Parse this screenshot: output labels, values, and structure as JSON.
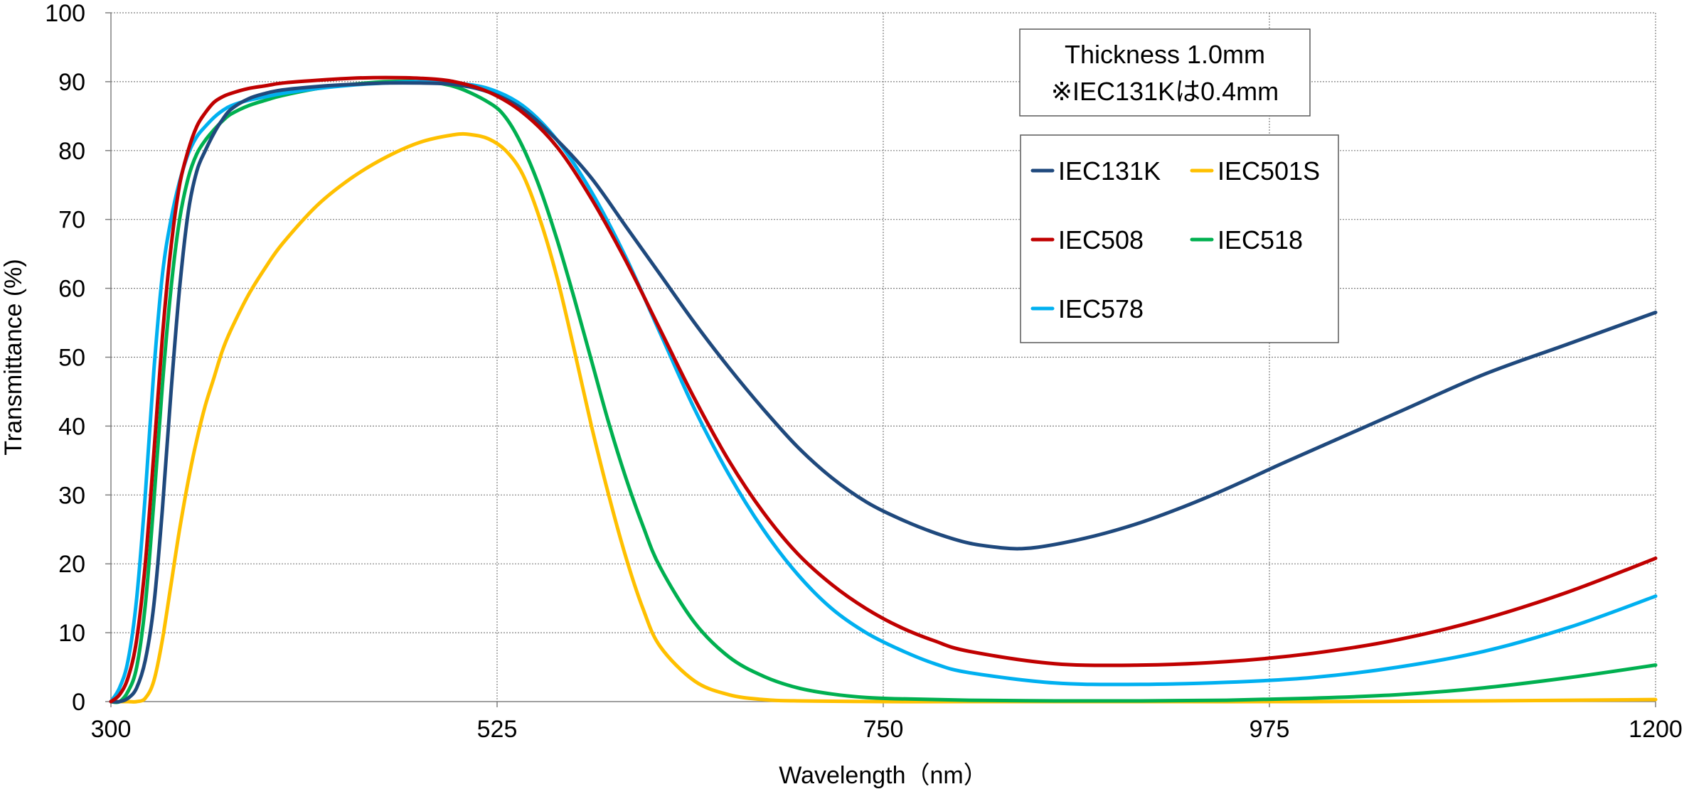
{
  "chart_data": {
    "type": "line",
    "title": "",
    "xlabel": "Wavelength（nm）",
    "ylabel": "Transmittance (%)",
    "xlim": [
      300,
      1200
    ],
    "ylim": [
      0,
      100
    ],
    "xticks": [
      300,
      525,
      750,
      975,
      1200
    ],
    "yticks": [
      0,
      10,
      20,
      30,
      40,
      50,
      60,
      70,
      80,
      90,
      100
    ],
    "grid": true,
    "legend_position": "top-right",
    "annotation": {
      "line1": "Thickness  1.0mm",
      "line2": "※IEC131Kは0.4mm"
    },
    "series": [
      {
        "name": "IEC131K",
        "color": "#1F497D",
        "x": [
          300,
          305,
          310,
          315,
          320,
          325,
          330,
          335,
          340,
          345,
          350,
          355,
          360,
          365,
          370,
          380,
          390,
          400,
          420,
          440,
          460,
          480,
          500,
          520,
          540,
          560,
          580,
          600,
          620,
          640,
          660,
          680,
          700,
          720,
          740,
          760,
          780,
          800,
          820,
          830,
          840,
          860,
          880,
          900,
          920,
          940,
          960,
          980,
          1000,
          1050,
          1100,
          1150,
          1200
        ],
        "y": [
          0,
          0,
          0.5,
          2,
          6,
          14,
          28,
          45,
          60,
          71,
          77,
          80,
          82.5,
          84.5,
          86,
          87.5,
          88.3,
          88.8,
          89.3,
          89.6,
          89.8,
          89.8,
          89.6,
          88.5,
          86,
          81.5,
          76,
          69,
          62,
          55,
          48.5,
          42.5,
          37,
          32.5,
          29,
          26.5,
          24.5,
          23,
          22.3,
          22.2,
          22.4,
          23.3,
          24.5,
          26,
          27.8,
          29.8,
          32,
          34.3,
          36.5,
          42,
          47.5,
          52,
          56.5
        ]
      },
      {
        "name": "IEC501S",
        "color": "#FFC000",
        "x": [
          300,
          310,
          315,
          320,
          325,
          330,
          335,
          340,
          345,
          350,
          355,
          360,
          365,
          370,
          380,
          390,
          400,
          420,
          440,
          460,
          480,
          500,
          510,
          520,
          530,
          540,
          550,
          560,
          570,
          580,
          590,
          600,
          610,
          620,
          640,
          660,
          680,
          700,
          750,
          800,
          900,
          1000,
          1100,
          1200
        ],
        "y": [
          0,
          0,
          0,
          0.5,
          3,
          9,
          17,
          25,
          32,
          38,
          43,
          47,
          51,
          54,
          59,
          63,
          66.5,
          72,
          76,
          79,
          81.2,
          82.3,
          82.3,
          81.7,
          80,
          76.5,
          70,
          61.5,
          51,
          40,
          30,
          21,
          13.5,
          8,
          3,
          1,
          0.3,
          0.1,
          0,
          0,
          0,
          0,
          0.1,
          0.3
        ]
      },
      {
        "name": "IEC508",
        "color": "#C00000",
        "x": [
          300,
          305,
          310,
          315,
          320,
          325,
          330,
          335,
          340,
          345,
          350,
          355,
          360,
          365,
          370,
          380,
          390,
          400,
          420,
          440,
          460,
          480,
          500,
          520,
          540,
          560,
          580,
          600,
          620,
          640,
          660,
          680,
          700,
          720,
          740,
          760,
          780,
          800,
          850,
          900,
          950,
          1000,
          1050,
          1100,
          1150,
          1200
        ],
        "y": [
          0,
          1,
          3.5,
          9,
          20,
          36,
          53,
          66,
          75,
          80,
          83.5,
          85.5,
          87,
          87.8,
          88.3,
          89,
          89.4,
          89.8,
          90.2,
          90.5,
          90.6,
          90.5,
          90,
          88.5,
          85.5,
          80.5,
          73,
          64,
          54,
          44,
          35,
          27.5,
          21.5,
          17,
          13.5,
          10.8,
          8.8,
          7.3,
          5.5,
          5.3,
          5.8,
          7,
          9,
          12,
          16,
          20.8
        ]
      },
      {
        "name": "IEC518",
        "color": "#00B050",
        "x": [
          300,
          305,
          310,
          315,
          320,
          325,
          330,
          335,
          340,
          345,
          350,
          355,
          360,
          365,
          370,
          380,
          390,
          400,
          420,
          440,
          460,
          480,
          500,
          520,
          530,
          540,
          550,
          560,
          570,
          580,
          590,
          600,
          610,
          620,
          640,
          660,
          680,
          700,
          720,
          740,
          760,
          800,
          850,
          900,
          950,
          1000,
          1050,
          1100,
          1150,
          1200
        ],
        "y": [
          0,
          0,
          1.5,
          5,
          14,
          29,
          46,
          60,
          70,
          76,
          79.5,
          81.5,
          83,
          84.3,
          85.3,
          86.5,
          87.3,
          88,
          89,
          89.6,
          90,
          90,
          89.3,
          87,
          84.8,
          80.5,
          74.5,
          67,
          58.5,
          49.5,
          40.5,
          32.5,
          25.5,
          19.5,
          11.5,
          6.5,
          3.7,
          2,
          1.1,
          0.6,
          0.4,
          0.2,
          0.1,
          0.1,
          0.2,
          0.5,
          1,
          2,
          3.5,
          5.3
        ]
      },
      {
        "name": "IEC578",
        "color": "#00B0F0",
        "x": [
          300,
          305,
          310,
          315,
          320,
          325,
          330,
          335,
          340,
          345,
          350,
          355,
          360,
          365,
          370,
          380,
          390,
          400,
          420,
          440,
          460,
          480,
          500,
          520,
          540,
          560,
          580,
          600,
          620,
          640,
          660,
          680,
          700,
          720,
          740,
          760,
          780,
          800,
          850,
          900,
          950,
          1000,
          1050,
          1100,
          1150,
          1200
        ],
        "y": [
          0,
          2,
          6,
          15,
          30,
          48,
          62,
          70,
          75.5,
          79.5,
          82,
          83.5,
          84.8,
          85.8,
          86.5,
          87.3,
          87.8,
          88.3,
          89,
          89.5,
          89.8,
          90,
          89.8,
          89,
          86.5,
          81.5,
          74,
          64.5,
          53.5,
          42.5,
          33,
          25,
          18.5,
          13.5,
          10,
          7.5,
          5.5,
          4.2,
          2.7,
          2.5,
          2.8,
          3.5,
          5,
          7.3,
          10.8,
          15.3
        ]
      }
    ]
  }
}
